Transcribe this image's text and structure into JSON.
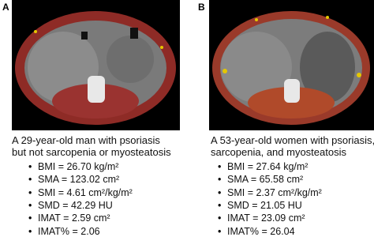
{
  "panels": [
    {
      "label": "A",
      "caption": [
        "A 29-year-old man with psoriasis",
        "but not sarcopenia or myosteatosis"
      ],
      "bullets": [
        "BMI = 26.70 kg/m²",
        "SMA = 123.02 cm²",
        "SMI = 4.61 cm²/kg/m²",
        "SMD = 42.29 HU",
        "IMAT = 2.59 cm²",
        "IMAT% = 2.06"
      ]
    },
    {
      "label": "B",
      "caption": [
        "A 53-year-old women with psoriasis,",
        "sarcopenia, and myosteatosis"
      ],
      "bullets": [
        "BMI = 27.64 kg/m²",
        "SMA = 65.58 cm²",
        "SMI = 2.37 cm²/kg/m²",
        "SMD = 21.05 HU",
        "IMAT = 23.09 cm²",
        "IMAT% = 26.04"
      ]
    }
  ]
}
